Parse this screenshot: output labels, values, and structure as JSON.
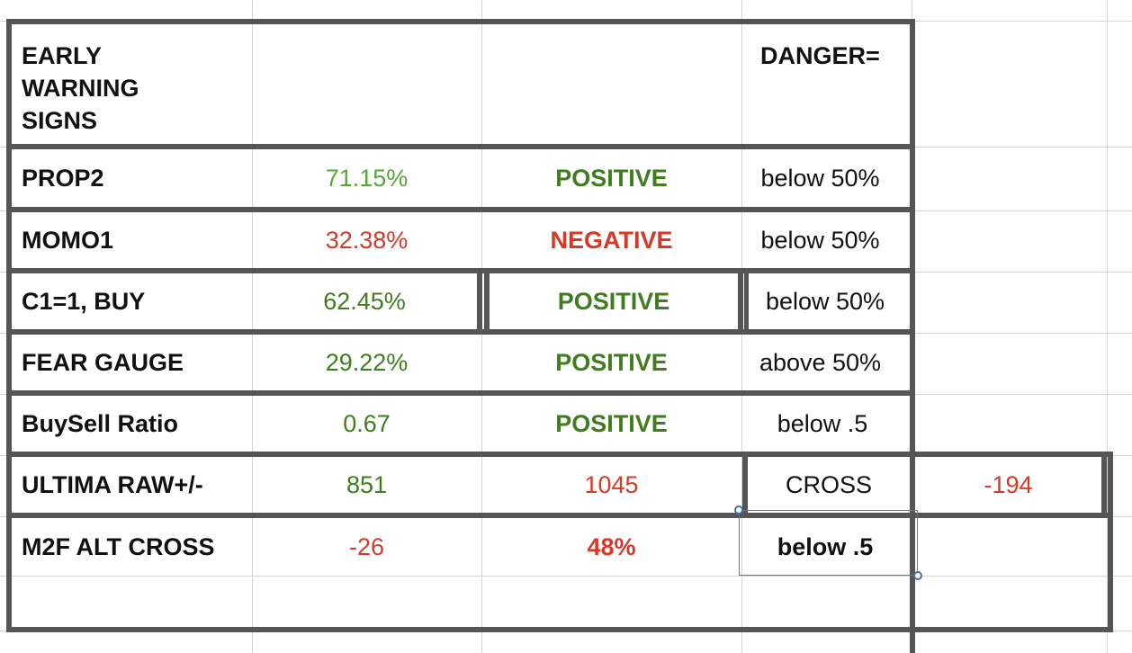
{
  "header": {
    "title_lines": [
      "EARLY",
      "WARNING",
      "SIGNS"
    ],
    "danger_label": "DANGER="
  },
  "rows": [
    {
      "label": "PROP2",
      "value": "71.15%",
      "signal": "POSITIVE",
      "danger": "below 50%"
    },
    {
      "label": "MOMO1",
      "value": "32.38%",
      "signal": "NEGATIVE",
      "danger": "below 50%"
    },
    {
      "label": "C1=1, BUY",
      "value": "62.45%",
      "signal": "POSITIVE",
      "danger": "below 50%"
    },
    {
      "label": "FEAR GAUGE",
      "value": "29.22%",
      "signal": "POSITIVE",
      "danger": "above 50%"
    },
    {
      "label": "BuySell Ratio",
      "value": "0.67",
      "signal": "POSITIVE",
      "danger": "below .5"
    },
    {
      "label": "ULTIMA RAW+/-",
      "value": "851",
      "signal": "1045",
      "danger": "CROSS",
      "extra": "-194"
    },
    {
      "label": "M2F ALT CROSS",
      "value": "-26",
      "signal": "48%",
      "danger": "below .5"
    }
  ],
  "colors": {
    "positive": "#3f7d1e",
    "light_green": "#56a83a",
    "negative": "#d63a27",
    "border": "#555555",
    "selection": "#4a7fc1"
  }
}
